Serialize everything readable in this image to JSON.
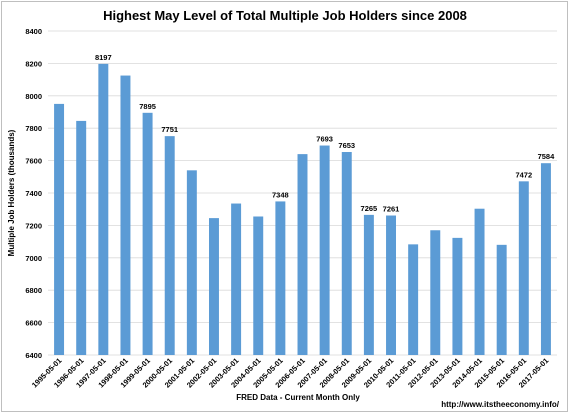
{
  "chart_data": {
    "type": "bar",
    "title": "Highest May Level of Total Multiple Job Holders since 2008",
    "xlabel": "FRED Data - Current Month Only",
    "ylabel": "Multiple Job Holders (thousands)",
    "source_note": "http://www.itstheeconomy.info/",
    "ylim": [
      6400,
      8400
    ],
    "yticks": [
      6400,
      6600,
      6800,
      7000,
      7200,
      7400,
      7600,
      7800,
      8000,
      8200,
      8400
    ],
    "grid": true,
    "categories": [
      "1995-05-01",
      "1996-05-01",
      "1997-05-01",
      "1998-05-01",
      "1999-05-01",
      "2000-05-01",
      "2001-05-01",
      "2002-05-01",
      "2003-05-01",
      "2004-05-01",
      "2005-05-01",
      "2006-05-01",
      "2007-05-01",
      "2008-05-01",
      "2009-05-01",
      "2010-05-01",
      "2011-05-01",
      "2012-05-01",
      "2013-05-01",
      "2014-05-01",
      "2015-05-01",
      "2016-05-01",
      "2017-05-01"
    ],
    "values": [
      7950,
      7845,
      8197,
      8125,
      7895,
      7751,
      7540,
      7245,
      7335,
      7255,
      7348,
      7640,
      7693,
      7653,
      7265,
      7261,
      7083,
      7170,
      7123,
      7303,
      7080,
      7472,
      7584
    ],
    "data_labels": [
      null,
      null,
      "8197",
      null,
      "7895",
      "7751",
      null,
      null,
      null,
      null,
      "7348",
      null,
      "7693",
      "7653",
      "7265",
      "7261",
      null,
      null,
      null,
      null,
      null,
      "7472",
      "7584"
    ],
    "bar_color": "#5b9bd5"
  }
}
